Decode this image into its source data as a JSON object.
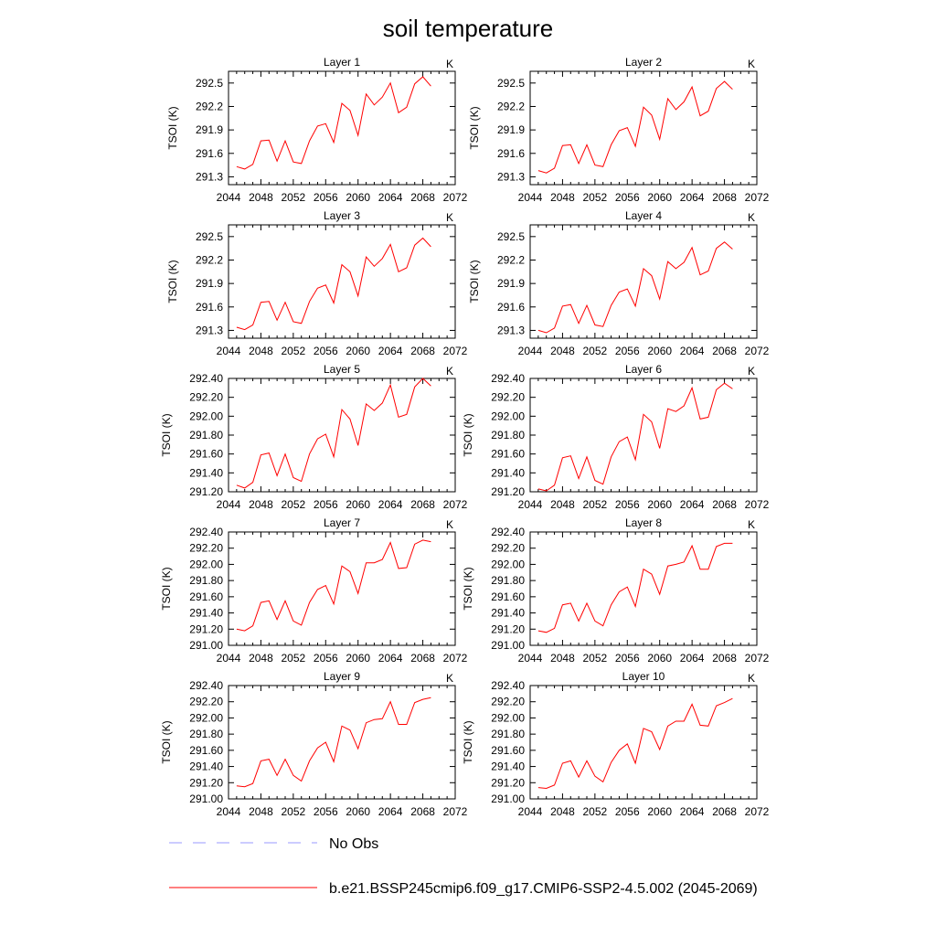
{
  "figure": {
    "title": "soil temperature",
    "legend": [
      {
        "label": "No Obs",
        "color": "#9999ff",
        "style": "dashed"
      },
      {
        "label": "b.e21.BSSP245cmip6.f09_g17.CMIP6-SSP2-4.5.002 (2045-2069)",
        "color": "#ff0000",
        "style": "solid"
      }
    ]
  },
  "chart_data": [
    {
      "type": "line",
      "title": "Layer 1",
      "units": "K",
      "xlabel": "",
      "ylabel": "TSOI  (K)",
      "xlim": [
        2044,
        2072
      ],
      "ylim": [
        291.2,
        292.65
      ],
      "xticks": [
        "2044",
        "2048",
        "2052",
        "2056",
        "2060",
        "2064",
        "2068",
        "2072"
      ],
      "yticks": [
        "291.3",
        "291.6",
        "291.9",
        "292.2",
        "292.5"
      ],
      "x": [
        2045,
        2046,
        2047,
        2048,
        2049,
        2050,
        2051,
        2052,
        2053,
        2054,
        2055,
        2056,
        2057,
        2058,
        2059,
        2060,
        2061,
        2062,
        2063,
        2064,
        2065,
        2066,
        2067,
        2068,
        2069
      ],
      "series": [
        {
          "name": "b.e21.BSSP245cmip6.f09_g17.CMIP6-SSP2-4.5.002 (2045-2069)",
          "color": "#ff0000",
          "values": [
            291.43,
            291.4,
            291.46,
            291.76,
            291.77,
            291.5,
            291.76,
            291.49,
            291.47,
            291.76,
            291.95,
            291.98,
            291.74,
            292.24,
            292.15,
            291.83,
            292.36,
            292.22,
            292.32,
            292.5,
            292.12,
            292.19,
            292.49,
            292.58,
            292.46
          ]
        }
      ]
    },
    {
      "type": "line",
      "title": "Layer 2",
      "units": "K",
      "xlabel": "",
      "ylabel": "TSOI  (K)",
      "xlim": [
        2044,
        2072
      ],
      "ylim": [
        291.2,
        292.65
      ],
      "xticks": [
        "2044",
        "2048",
        "2052",
        "2056",
        "2060",
        "2064",
        "2068",
        "2072"
      ],
      "yticks": [
        "291.3",
        "291.6",
        "291.9",
        "292.2",
        "292.5"
      ],
      "x": [
        2045,
        2046,
        2047,
        2048,
        2049,
        2050,
        2051,
        2052,
        2053,
        2054,
        2055,
        2056,
        2057,
        2058,
        2059,
        2060,
        2061,
        2062,
        2063,
        2064,
        2065,
        2066,
        2067,
        2068,
        2069
      ],
      "series": [
        {
          "name": "b.e21.BSSP245cmip6.f09_g17.CMIP6-SSP2-4.5.002 (2045-2069)",
          "color": "#ff0000",
          "values": [
            291.38,
            291.35,
            291.41,
            291.7,
            291.71,
            291.47,
            291.71,
            291.45,
            291.43,
            291.71,
            291.89,
            291.93,
            291.69,
            292.19,
            292.09,
            291.78,
            292.3,
            292.16,
            292.26,
            292.45,
            292.08,
            292.14,
            292.43,
            292.52,
            292.42
          ]
        }
      ]
    },
    {
      "type": "line",
      "title": "Layer 3",
      "units": "K",
      "xlabel": "",
      "ylabel": "TSOI  (K)",
      "xlim": [
        2044,
        2072
      ],
      "ylim": [
        291.2,
        292.65
      ],
      "xticks": [
        "2044",
        "2048",
        "2052",
        "2056",
        "2060",
        "2064",
        "2068",
        "2072"
      ],
      "yticks": [
        "291.3",
        "291.6",
        "291.9",
        "292.2",
        "292.5"
      ],
      "x": [
        2045,
        2046,
        2047,
        2048,
        2049,
        2050,
        2051,
        2052,
        2053,
        2054,
        2055,
        2056,
        2057,
        2058,
        2059,
        2060,
        2061,
        2062,
        2063,
        2064,
        2065,
        2066,
        2067,
        2068,
        2069
      ],
      "series": [
        {
          "name": "b.e21.BSSP245cmip6.f09_g17.CMIP6-SSP2-4.5.002 (2045-2069)",
          "color": "#ff0000",
          "values": [
            291.34,
            291.31,
            291.37,
            291.66,
            291.67,
            291.43,
            291.66,
            291.41,
            291.39,
            291.67,
            291.84,
            291.88,
            291.65,
            292.14,
            292.05,
            291.74,
            292.24,
            292.12,
            292.22,
            292.4,
            292.05,
            292.1,
            292.39,
            292.48,
            292.37
          ]
        }
      ]
    },
    {
      "type": "line",
      "title": "Layer 4",
      "units": "K",
      "xlabel": "",
      "ylabel": "TSOI  (K)",
      "xlim": [
        2044,
        2072
      ],
      "ylim": [
        291.2,
        292.65
      ],
      "xticks": [
        "2044",
        "2048",
        "2052",
        "2056",
        "2060",
        "2064",
        "2068",
        "2072"
      ],
      "yticks": [
        "291.3",
        "291.6",
        "291.9",
        "292.2",
        "292.5"
      ],
      "x": [
        2045,
        2046,
        2047,
        2048,
        2049,
        2050,
        2051,
        2052,
        2053,
        2054,
        2055,
        2056,
        2057,
        2058,
        2059,
        2060,
        2061,
        2062,
        2063,
        2064,
        2065,
        2066,
        2067,
        2068,
        2069
      ],
      "series": [
        {
          "name": "b.e21.BSSP245cmip6.f09_g17.CMIP6-SSP2-4.5.002 (2045-2069)",
          "color": "#ff0000",
          "values": [
            291.3,
            291.27,
            291.33,
            291.61,
            291.63,
            291.39,
            291.62,
            291.37,
            291.35,
            291.62,
            291.79,
            291.83,
            291.61,
            292.09,
            292.0,
            291.7,
            292.18,
            292.09,
            292.17,
            292.36,
            292.01,
            292.06,
            292.35,
            292.43,
            292.34
          ]
        }
      ]
    },
    {
      "type": "line",
      "title": "Layer 5",
      "units": "K",
      "xlabel": "",
      "ylabel": "TSOI  (K)",
      "xlim": [
        2044,
        2072
      ],
      "ylim": [
        291.2,
        292.4
      ],
      "xticks": [
        "2044",
        "2048",
        "2052",
        "2056",
        "2060",
        "2064",
        "2068",
        "2072"
      ],
      "yticks": [
        "291.20",
        "291.40",
        "291.60",
        "291.80",
        "292.00",
        "292.20",
        "292.40"
      ],
      "x": [
        2045,
        2046,
        2047,
        2048,
        2049,
        2050,
        2051,
        2052,
        2053,
        2054,
        2055,
        2056,
        2057,
        2058,
        2059,
        2060,
        2061,
        2062,
        2063,
        2064,
        2065,
        2066,
        2067,
        2068,
        2069
      ],
      "series": [
        {
          "name": "b.e21.BSSP245cmip6.f09_g17.CMIP6-SSP2-4.5.002 (2045-2069)",
          "color": "#ff0000",
          "values": [
            291.27,
            291.24,
            291.3,
            291.59,
            291.61,
            291.37,
            291.6,
            291.35,
            291.31,
            291.6,
            291.76,
            291.81,
            291.57,
            292.07,
            291.97,
            291.69,
            292.13,
            292.06,
            292.14,
            292.33,
            291.99,
            292.02,
            292.31,
            292.4,
            292.32
          ]
        }
      ]
    },
    {
      "type": "line",
      "title": "Layer 6",
      "units": "K",
      "xlabel": "",
      "ylabel": "TSOI  (K)",
      "xlim": [
        2044,
        2072
      ],
      "ylim": [
        291.2,
        292.4
      ],
      "xticks": [
        "2044",
        "2048",
        "2052",
        "2056",
        "2060",
        "2064",
        "2068",
        "2072"
      ],
      "yticks": [
        "291.20",
        "291.40",
        "291.60",
        "291.80",
        "292.00",
        "292.20",
        "292.40"
      ],
      "x": [
        2045,
        2046,
        2047,
        2048,
        2049,
        2050,
        2051,
        2052,
        2053,
        2054,
        2055,
        2056,
        2057,
        2058,
        2059,
        2060,
        2061,
        2062,
        2063,
        2064,
        2065,
        2066,
        2067,
        2068,
        2069
      ],
      "series": [
        {
          "name": "b.e21.BSSP245cmip6.f09_g17.CMIP6-SSP2-4.5.002 (2045-2069)",
          "color": "#ff0000",
          "values": [
            291.23,
            291.21,
            291.27,
            291.56,
            291.58,
            291.34,
            291.57,
            291.32,
            291.28,
            291.57,
            291.73,
            291.78,
            291.54,
            292.02,
            291.94,
            291.66,
            292.08,
            292.05,
            292.11,
            292.3,
            291.97,
            291.99,
            292.28,
            292.35,
            292.29
          ]
        }
      ]
    },
    {
      "type": "line",
      "title": "Layer 7",
      "units": "K",
      "xlabel": "",
      "ylabel": "TSOI  (K)",
      "xlim": [
        2044,
        2072
      ],
      "ylim": [
        291.0,
        292.4
      ],
      "xticks": [
        "2044",
        "2048",
        "2052",
        "2056",
        "2060",
        "2064",
        "2068",
        "2072"
      ],
      "yticks": [
        "291.00",
        "291.20",
        "291.40",
        "291.60",
        "291.80",
        "292.00",
        "292.20",
        "292.40"
      ],
      "x": [
        2045,
        2046,
        2047,
        2048,
        2049,
        2050,
        2051,
        2052,
        2053,
        2054,
        2055,
        2056,
        2057,
        2058,
        2059,
        2060,
        2061,
        2062,
        2063,
        2064,
        2065,
        2066,
        2067,
        2068,
        2069
      ],
      "series": [
        {
          "name": "b.e21.BSSP245cmip6.f09_g17.CMIP6-SSP2-4.5.002 (2045-2069)",
          "color": "#ff0000",
          "values": [
            291.2,
            291.18,
            291.24,
            291.53,
            291.55,
            291.32,
            291.55,
            291.3,
            291.25,
            291.53,
            291.69,
            291.74,
            291.51,
            291.98,
            291.91,
            291.64,
            292.02,
            292.02,
            292.06,
            292.27,
            291.95,
            291.96,
            292.25,
            292.3,
            292.28
          ]
        }
      ]
    },
    {
      "type": "line",
      "title": "Layer 8",
      "units": "K",
      "xlabel": "",
      "ylabel": "TSOI  (K)",
      "xlim": [
        2044,
        2072
      ],
      "ylim": [
        291.0,
        292.4
      ],
      "xticks": [
        "2044",
        "2048",
        "2052",
        "2056",
        "2060",
        "2064",
        "2068",
        "2072"
      ],
      "yticks": [
        "291.00",
        "291.20",
        "291.40",
        "291.60",
        "291.80",
        "292.00",
        "292.20",
        "292.40"
      ],
      "x": [
        2045,
        2046,
        2047,
        2048,
        2049,
        2050,
        2051,
        2052,
        2053,
        2054,
        2055,
        2056,
        2057,
        2058,
        2059,
        2060,
        2061,
        2062,
        2063,
        2064,
        2065,
        2066,
        2067,
        2068,
        2069
      ],
      "series": [
        {
          "name": "b.e21.BSSP245cmip6.f09_g17.CMIP6-SSP2-4.5.002 (2045-2069)",
          "color": "#ff0000",
          "values": [
            291.18,
            291.16,
            291.21,
            291.5,
            291.52,
            291.3,
            291.52,
            291.3,
            291.24,
            291.5,
            291.66,
            291.72,
            291.48,
            291.94,
            291.88,
            291.63,
            291.98,
            292.0,
            292.03,
            292.23,
            291.94,
            291.94,
            292.22,
            292.26,
            292.26
          ]
        }
      ]
    },
    {
      "type": "line",
      "title": "Layer 9",
      "units": "K",
      "xlabel": "",
      "ylabel": "TSOI  (K)",
      "xlim": [
        2044,
        2072
      ],
      "ylim": [
        291.0,
        292.4
      ],
      "xticks": [
        "2044",
        "2048",
        "2052",
        "2056",
        "2060",
        "2064",
        "2068",
        "2072"
      ],
      "yticks": [
        "291.00",
        "291.20",
        "291.40",
        "291.60",
        "291.80",
        "292.00",
        "292.20",
        "292.40"
      ],
      "x": [
        2045,
        2046,
        2047,
        2048,
        2049,
        2050,
        2051,
        2052,
        2053,
        2054,
        2055,
        2056,
        2057,
        2058,
        2059,
        2060,
        2061,
        2062,
        2063,
        2064,
        2065,
        2066,
        2067,
        2068,
        2069
      ],
      "series": [
        {
          "name": "b.e21.BSSP245cmip6.f09_g17.CMIP6-SSP2-4.5.002 (2045-2069)",
          "color": "#ff0000",
          "values": [
            291.16,
            291.15,
            291.19,
            291.47,
            291.49,
            291.29,
            291.49,
            291.29,
            291.22,
            291.47,
            291.63,
            291.7,
            291.46,
            291.9,
            291.85,
            291.62,
            291.94,
            291.98,
            291.99,
            292.2,
            291.92,
            291.92,
            292.19,
            292.23,
            292.25
          ]
        }
      ]
    },
    {
      "type": "line",
      "title": "Layer 10",
      "units": "K",
      "xlabel": "",
      "ylabel": "TSOI  (K)",
      "xlim": [
        2044,
        2072
      ],
      "ylim": [
        291.0,
        292.4
      ],
      "xticks": [
        "2044",
        "2048",
        "2052",
        "2056",
        "2060",
        "2064",
        "2068",
        "2072"
      ],
      "yticks": [
        "291.00",
        "291.20",
        "291.40",
        "291.60",
        "291.80",
        "292.00",
        "292.20",
        "292.40"
      ],
      "x": [
        2045,
        2046,
        2047,
        2048,
        2049,
        2050,
        2051,
        2052,
        2053,
        2054,
        2055,
        2056,
        2057,
        2058,
        2059,
        2060,
        2061,
        2062,
        2063,
        2064,
        2065,
        2066,
        2067,
        2068,
        2069
      ],
      "series": [
        {
          "name": "b.e21.BSSP245cmip6.f09_g17.CMIP6-SSP2-4.5.002 (2045-2069)",
          "color": "#ff0000",
          "values": [
            291.14,
            291.13,
            291.17,
            291.44,
            291.47,
            291.27,
            291.47,
            291.28,
            291.21,
            291.45,
            291.6,
            291.68,
            291.44,
            291.87,
            291.83,
            291.61,
            291.9,
            291.96,
            291.96,
            292.17,
            291.91,
            291.9,
            292.15,
            292.19,
            292.24
          ]
        }
      ]
    }
  ]
}
